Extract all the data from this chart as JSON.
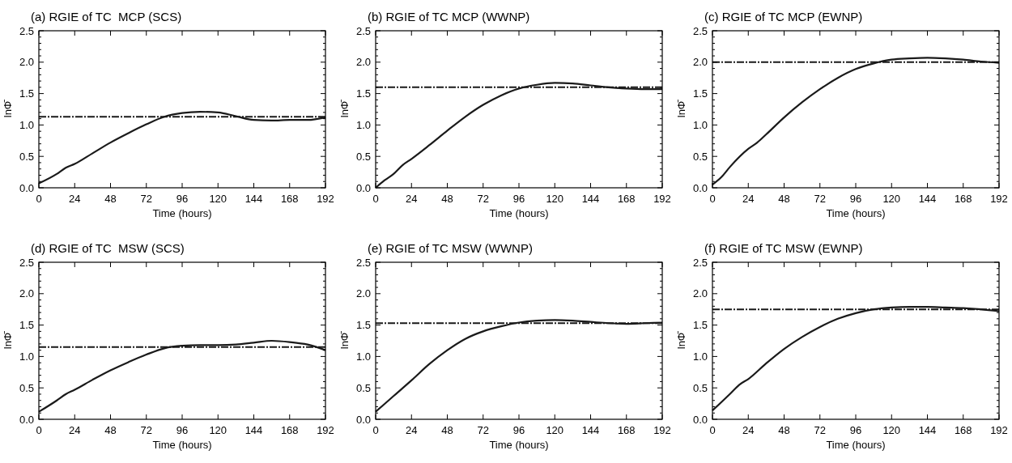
{
  "chart_data": [
    {
      "type": "line",
      "title": "(a) RGIE of TC  MCP (SCS)",
      "xlabel": "Time (hours)",
      "ylabel": "lnΦ̄",
      "xlim": [
        0,
        192
      ],
      "xticks": [
        0,
        24,
        48,
        72,
        96,
        120,
        144,
        168,
        192
      ],
      "ylim": [
        0,
        2.5
      ],
      "yticks": [
        {
          "value": 0,
          "label": "0.0"
        },
        {
          "value": 0.1,
          "label": null
        },
        {
          "value": 0.2,
          "label": null
        },
        {
          "value": 0.3,
          "label": null
        },
        {
          "value": 0.4,
          "label": null
        },
        0.5,
        {
          "value": 0.6,
          "label": null
        },
        {
          "value": 0.7,
          "label": null
        },
        {
          "value": 0.8,
          "label": null
        },
        {
          "value": 0.9,
          "label": null
        },
        {
          "value": 1,
          "label": "1.0"
        },
        {
          "value": 1.1,
          "label": null
        },
        {
          "value": 1.2,
          "label": null
        },
        {
          "value": 1.3,
          "label": null
        },
        {
          "value": 1.4,
          "label": null
        },
        1.5,
        {
          "value": 1.6,
          "label": null
        },
        {
          "value": 1.7,
          "label": null
        },
        {
          "value": 1.8,
          "label": null
        },
        {
          "value": 1.9,
          "label": null
        },
        {
          "value": 2,
          "label": "2.0"
        },
        {
          "value": 2.1,
          "label": null
        },
        {
          "value": 2.2,
          "label": null
        },
        {
          "value": 2.3,
          "label": null
        },
        {
          "value": 2.4,
          "label": null
        },
        2.5
      ],
      "grid": false,
      "line_style": "solid",
      "series": [
        {
          "color": "#1a1a1a",
          "x": [
            0,
            12,
            18,
            24,
            36,
            48,
            60,
            72,
            84,
            96,
            108,
            120,
            132,
            144,
            156,
            168,
            180,
            192
          ],
          "values": [
            0.07,
            0.22,
            0.32,
            0.38,
            0.55,
            0.72,
            0.87,
            1.01,
            1.13,
            1.19,
            1.21,
            1.2,
            1.14,
            1.08,
            1.07,
            1.08,
            1.08,
            1.12
          ]
        }
      ],
      "ref_lines": [
        {
          "axis": "y",
          "value": 1.13,
          "color": "#1a1a1a",
          "line_style": "dashed"
        }
      ]
    },
    {
      "type": "line",
      "title": "(b) RGIE of TC MCP (WWNP)",
      "xlabel": "Time (hours)",
      "ylabel": "lnΦ̄",
      "xlim": [
        0,
        192
      ],
      "xticks": [
        0,
        24,
        48,
        72,
        96,
        120,
        144,
        168,
        192
      ],
      "ylim": [
        0,
        2.5
      ],
      "yticks": [
        {
          "value": 0,
          "label": "0.0"
        },
        {
          "value": 0.1,
          "label": null
        },
        {
          "value": 0.2,
          "label": null
        },
        {
          "value": 0.3,
          "label": null
        },
        {
          "value": 0.4,
          "label": null
        },
        0.5,
        {
          "value": 0.6,
          "label": null
        },
        {
          "value": 0.7,
          "label": null
        },
        {
          "value": 0.8,
          "label": null
        },
        {
          "value": 0.9,
          "label": null
        },
        {
          "value": 1,
          "label": "1.0"
        },
        {
          "value": 1.1,
          "label": null
        },
        {
          "value": 1.2,
          "label": null
        },
        {
          "value": 1.3,
          "label": null
        },
        {
          "value": 1.4,
          "label": null
        },
        1.5,
        {
          "value": 1.6,
          "label": null
        },
        {
          "value": 1.7,
          "label": null
        },
        {
          "value": 1.8,
          "label": null
        },
        {
          "value": 1.9,
          "label": null
        },
        {
          "value": 2,
          "label": "2.0"
        },
        {
          "value": 2.1,
          "label": null
        },
        {
          "value": 2.2,
          "label": null
        },
        {
          "value": 2.3,
          "label": null
        },
        {
          "value": 2.4,
          "label": null
        },
        2.5
      ],
      "grid": false,
      "line_style": "solid",
      "series": [
        {
          "color": "#1a1a1a",
          "x": [
            0,
            6,
            12,
            18,
            24,
            36,
            48,
            60,
            72,
            84,
            96,
            108,
            120,
            132,
            144,
            156,
            168,
            180,
            192
          ],
          "values": [
            0,
            0.12,
            0.22,
            0.36,
            0.46,
            0.68,
            0.91,
            1.13,
            1.32,
            1.47,
            1.58,
            1.64,
            1.67,
            1.66,
            1.63,
            1.6,
            1.58,
            1.57,
            1.57
          ]
        }
      ],
      "ref_lines": [
        {
          "axis": "y",
          "value": 1.6,
          "color": "#1a1a1a",
          "line_style": "dashed"
        }
      ]
    },
    {
      "type": "line",
      "title": "(c) RGIE of TC MCP (EWNP)",
      "xlabel": "Time (hours)",
      "ylabel": "lnΦ̄",
      "xlim": [
        0,
        192
      ],
      "xticks": [
        0,
        24,
        48,
        72,
        96,
        120,
        144,
        168,
        192
      ],
      "ylim": [
        0,
        2.5
      ],
      "yticks": [
        {
          "value": 0,
          "label": "0.0"
        },
        {
          "value": 0.1,
          "label": null
        },
        {
          "value": 0.2,
          "label": null
        },
        {
          "value": 0.3,
          "label": null
        },
        {
          "value": 0.4,
          "label": null
        },
        0.5,
        {
          "value": 0.6,
          "label": null
        },
        {
          "value": 0.7,
          "label": null
        },
        {
          "value": 0.8,
          "label": null
        },
        {
          "value": 0.9,
          "label": null
        },
        {
          "value": 1,
          "label": "1.0"
        },
        {
          "value": 1.1,
          "label": null
        },
        {
          "value": 1.2,
          "label": null
        },
        {
          "value": 1.3,
          "label": null
        },
        {
          "value": 1.4,
          "label": null
        },
        1.5,
        {
          "value": 1.6,
          "label": null
        },
        {
          "value": 1.7,
          "label": null
        },
        {
          "value": 1.8,
          "label": null
        },
        {
          "value": 1.9,
          "label": null
        },
        {
          "value": 2,
          "label": "2.0"
        },
        {
          "value": 2.1,
          "label": null
        },
        {
          "value": 2.2,
          "label": null
        },
        {
          "value": 2.3,
          "label": null
        },
        {
          "value": 2.4,
          "label": null
        },
        2.5
      ],
      "grid": false,
      "line_style": "solid",
      "series": [
        {
          "color": "#1a1a1a",
          "x": [
            0,
            6,
            12,
            24,
            30,
            36,
            48,
            60,
            72,
            84,
            96,
            108,
            120,
            132,
            144,
            156,
            168,
            180,
            192
          ],
          "values": [
            0.05,
            0.17,
            0.34,
            0.62,
            0.72,
            0.85,
            1.12,
            1.36,
            1.57,
            1.75,
            1.89,
            1.98,
            2.04,
            2.06,
            2.07,
            2.06,
            2.04,
            2.01,
            1.99
          ]
        }
      ],
      "ref_lines": [
        {
          "axis": "y",
          "value": 2.0,
          "color": "#1a1a1a",
          "line_style": "dashed"
        }
      ]
    },
    {
      "type": "line",
      "title": "(d) RGIE of TC  MSW (SCS)",
      "xlabel": "Time (hours)",
      "ylabel": "lnΦ̄",
      "xlim": [
        0,
        192
      ],
      "xticks": [
        0,
        24,
        48,
        72,
        96,
        120,
        144,
        168,
        192
      ],
      "ylim": [
        0,
        2.5
      ],
      "yticks": [
        {
          "value": 0,
          "label": "0.0"
        },
        {
          "value": 0.1,
          "label": null
        },
        {
          "value": 0.2,
          "label": null
        },
        {
          "value": 0.3,
          "label": null
        },
        {
          "value": 0.4,
          "label": null
        },
        0.5,
        {
          "value": 0.6,
          "label": null
        },
        {
          "value": 0.7,
          "label": null
        },
        {
          "value": 0.8,
          "label": null
        },
        {
          "value": 0.9,
          "label": null
        },
        {
          "value": 1,
          "label": "1.0"
        },
        {
          "value": 1.1,
          "label": null
        },
        {
          "value": 1.2,
          "label": null
        },
        {
          "value": 1.3,
          "label": null
        },
        {
          "value": 1.4,
          "label": null
        },
        1.5,
        {
          "value": 1.6,
          "label": null
        },
        {
          "value": 1.7,
          "label": null
        },
        {
          "value": 1.8,
          "label": null
        },
        {
          "value": 1.9,
          "label": null
        },
        {
          "value": 2,
          "label": "2.0"
        },
        {
          "value": 2.1,
          "label": null
        },
        {
          "value": 2.2,
          "label": null
        },
        {
          "value": 2.3,
          "label": null
        },
        {
          "value": 2.4,
          "label": null
        },
        2.5
      ],
      "grid": false,
      "line_style": "solid",
      "series": [
        {
          "color": "#1a1a1a",
          "x": [
            0,
            12,
            18,
            24,
            36,
            48,
            60,
            72,
            84,
            96,
            108,
            120,
            132,
            144,
            156,
            168,
            180,
            192
          ],
          "values": [
            0.12,
            0.3,
            0.4,
            0.47,
            0.63,
            0.78,
            0.91,
            1.03,
            1.13,
            1.17,
            1.18,
            1.18,
            1.19,
            1.22,
            1.25,
            1.23,
            1.19,
            1.1
          ]
        }
      ],
      "ref_lines": [
        {
          "axis": "y",
          "value": 1.15,
          "color": "#1a1a1a",
          "line_style": "dashed"
        }
      ]
    },
    {
      "type": "line",
      "title": "(e) RGIE of TC MSW (WWNP)",
      "xlabel": "Time (hours)",
      "ylabel": "lnΦ̄",
      "xlim": [
        0,
        192
      ],
      "xticks": [
        0,
        24,
        48,
        72,
        96,
        120,
        144,
        168,
        192
      ],
      "ylim": [
        0,
        2.5
      ],
      "yticks": [
        {
          "value": 0,
          "label": "0.0"
        },
        {
          "value": 0.1,
          "label": null
        },
        {
          "value": 0.2,
          "label": null
        },
        {
          "value": 0.3,
          "label": null
        },
        {
          "value": 0.4,
          "label": null
        },
        0.5,
        {
          "value": 0.6,
          "label": null
        },
        {
          "value": 0.7,
          "label": null
        },
        {
          "value": 0.8,
          "label": null
        },
        {
          "value": 0.9,
          "label": null
        },
        {
          "value": 1,
          "label": "1.0"
        },
        {
          "value": 1.1,
          "label": null
        },
        {
          "value": 1.2,
          "label": null
        },
        {
          "value": 1.3,
          "label": null
        },
        {
          "value": 1.4,
          "label": null
        },
        1.5,
        {
          "value": 1.6,
          "label": null
        },
        {
          "value": 1.7,
          "label": null
        },
        {
          "value": 1.8,
          "label": null
        },
        {
          "value": 1.9,
          "label": null
        },
        {
          "value": 2,
          "label": "2.0"
        },
        {
          "value": 2.1,
          "label": null
        },
        {
          "value": 2.2,
          "label": null
        },
        {
          "value": 2.3,
          "label": null
        },
        {
          "value": 2.4,
          "label": null
        },
        2.5
      ],
      "grid": false,
      "line_style": "solid",
      "series": [
        {
          "color": "#1a1a1a",
          "x": [
            0,
            12,
            24,
            36,
            48,
            60,
            72,
            84,
            96,
            108,
            120,
            132,
            144,
            156,
            168,
            180,
            192
          ],
          "values": [
            0.12,
            0.37,
            0.62,
            0.88,
            1.1,
            1.28,
            1.4,
            1.48,
            1.54,
            1.57,
            1.58,
            1.57,
            1.55,
            1.53,
            1.52,
            1.53,
            1.54
          ]
        }
      ],
      "ref_lines": [
        {
          "axis": "y",
          "value": 1.53,
          "color": "#1a1a1a",
          "line_style": "dashed"
        }
      ]
    },
    {
      "type": "line",
      "title": "(f) RGIE of TC MSW (EWNP)",
      "xlabel": "Time (hours)",
      "ylabel": "lnΦ̄",
      "xlim": [
        0,
        192
      ],
      "xticks": [
        0,
        24,
        48,
        72,
        96,
        120,
        144,
        168,
        192
      ],
      "ylim": [
        0,
        2.5
      ],
      "yticks": [
        {
          "value": 0,
          "label": "0.0"
        },
        {
          "value": 0.1,
          "label": null
        },
        {
          "value": 0.2,
          "label": null
        },
        {
          "value": 0.3,
          "label": null
        },
        {
          "value": 0.4,
          "label": null
        },
        0.5,
        {
          "value": 0.6,
          "label": null
        },
        {
          "value": 0.7,
          "label": null
        },
        {
          "value": 0.8,
          "label": null
        },
        {
          "value": 0.9,
          "label": null
        },
        {
          "value": 1,
          "label": "1.0"
        },
        {
          "value": 1.1,
          "label": null
        },
        {
          "value": 1.2,
          "label": null
        },
        {
          "value": 1.3,
          "label": null
        },
        {
          "value": 1.4,
          "label": null
        },
        1.5,
        {
          "value": 1.6,
          "label": null
        },
        {
          "value": 1.7,
          "label": null
        },
        {
          "value": 1.8,
          "label": null
        },
        {
          "value": 1.9,
          "label": null
        },
        {
          "value": 2,
          "label": "2.0"
        },
        {
          "value": 2.1,
          "label": null
        },
        {
          "value": 2.2,
          "label": null
        },
        {
          "value": 2.3,
          "label": null
        },
        {
          "value": 2.4,
          "label": null
        },
        2.5
      ],
      "grid": false,
      "line_style": "solid",
      "series": [
        {
          "color": "#1a1a1a",
          "x": [
            0,
            12,
            18,
            24,
            36,
            48,
            60,
            72,
            84,
            96,
            108,
            120,
            132,
            144,
            156,
            168,
            180,
            192
          ],
          "values": [
            0.14,
            0.41,
            0.55,
            0.64,
            0.89,
            1.12,
            1.31,
            1.47,
            1.6,
            1.69,
            1.75,
            1.78,
            1.79,
            1.79,
            1.78,
            1.77,
            1.75,
            1.72
          ]
        }
      ],
      "ref_lines": [
        {
          "axis": "y",
          "value": 1.75,
          "color": "#1a1a1a",
          "line_style": "dashed"
        }
      ]
    }
  ]
}
